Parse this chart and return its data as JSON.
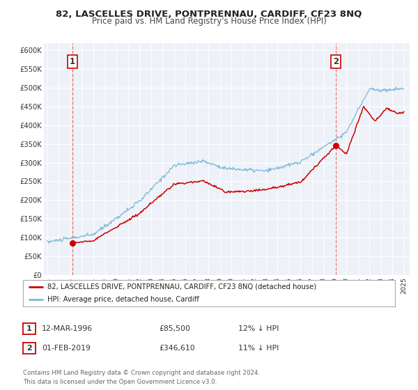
{
  "title": "82, LASCELLES DRIVE, PONTPRENNAU, CARDIFF, CF23 8NQ",
  "subtitle": "Price paid vs. HM Land Registry's House Price Index (HPI)",
  "xlim": [
    1993.7,
    2025.5
  ],
  "ylim": [
    0,
    620000
  ],
  "yticks": [
    0,
    50000,
    100000,
    150000,
    200000,
    250000,
    300000,
    350000,
    400000,
    450000,
    500000,
    550000,
    600000
  ],
  "ytick_labels": [
    "£0",
    "£50K",
    "£100K",
    "£150K",
    "£200K",
    "£250K",
    "£300K",
    "£350K",
    "£400K",
    "£450K",
    "£500K",
    "£550K",
    "£600K"
  ],
  "xticks": [
    1994,
    1995,
    1996,
    1997,
    1998,
    1999,
    2000,
    2001,
    2002,
    2003,
    2004,
    2005,
    2006,
    2007,
    2008,
    2009,
    2010,
    2011,
    2012,
    2013,
    2014,
    2015,
    2016,
    2017,
    2018,
    2019,
    2020,
    2021,
    2022,
    2023,
    2024,
    2025
  ],
  "sale1_x": 1996.19,
  "sale1_y": 85500,
  "sale2_x": 2019.08,
  "sale2_y": 346610,
  "vline1_x": 1996.19,
  "vline2_x": 2019.08,
  "hpi_color": "#7ab8d9",
  "price_color": "#cc0000",
  "vline_color": "#e87070",
  "dot_color": "#cc0000",
  "plot_bg": "#eef2f8",
  "legend_label1": "82, LASCELLES DRIVE, PONTPRENNAU, CARDIFF, CF23 8NQ (detached house)",
  "legend_label2": "HPI: Average price, detached house, Cardiff",
  "annotation1_label": "1",
  "annotation2_label": "2",
  "table_row1": [
    "1",
    "12-MAR-1996",
    "£85,500",
    "12% ↓ HPI"
  ],
  "table_row2": [
    "2",
    "01-FEB-2019",
    "£346,610",
    "11% ↓ HPI"
  ],
  "footer": "Contains HM Land Registry data © Crown copyright and database right 2024.\nThis data is licensed under the Open Government Licence v3.0.",
  "title_fontsize": 9.5,
  "subtitle_fontsize": 8.5
}
